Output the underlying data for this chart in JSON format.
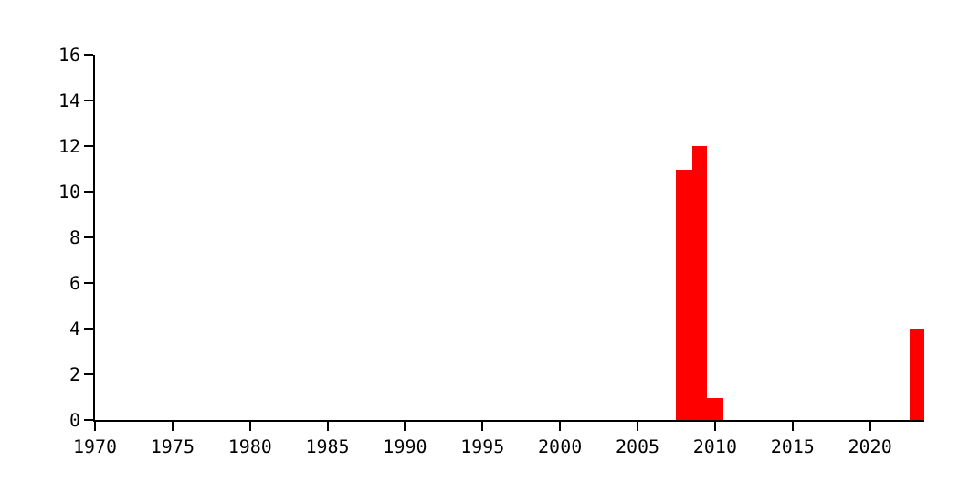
{
  "chart_data": {
    "type": "bar",
    "x": [
      2008,
      2009,
      2010,
      2023
    ],
    "values": [
      11,
      12,
      1,
      4
    ],
    "color": "#ff0000",
    "xlim": [
      1970,
      2023.5
    ],
    "xticks": [
      1970,
      1975,
      1980,
      1985,
      1990,
      1995,
      2000,
      2005,
      2010,
      2015,
      2020
    ],
    "ylim": [
      0,
      16
    ],
    "yticks": [
      0,
      2,
      4,
      6,
      8,
      10,
      12,
      14,
      16
    ]
  }
}
